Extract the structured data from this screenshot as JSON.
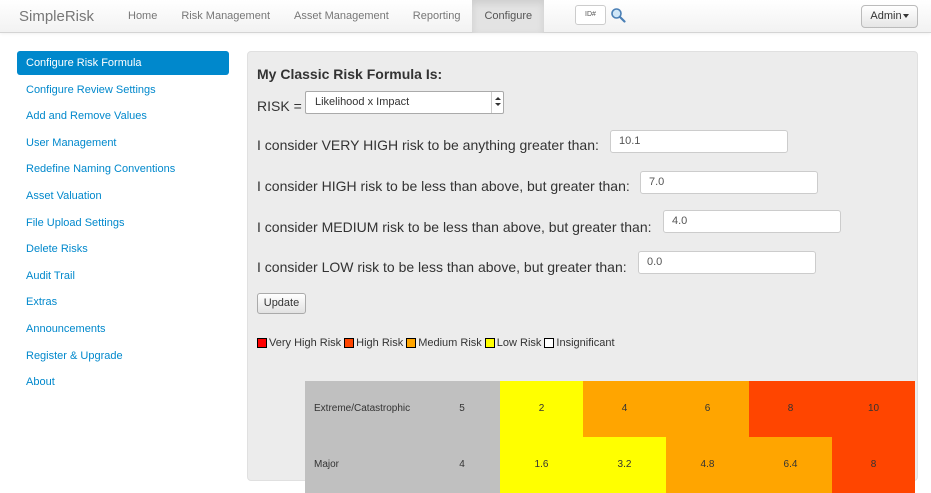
{
  "app": {
    "brand": "SimpleRisk"
  },
  "nav": {
    "items": [
      {
        "label": "Home",
        "active": false
      },
      {
        "label": "Risk Management",
        "active": false
      },
      {
        "label": "Asset Management",
        "active": false
      },
      {
        "label": "Reporting",
        "active": false
      },
      {
        "label": "Configure",
        "active": true
      }
    ],
    "search_placeholder": "ID#",
    "search_icon": "magnifier-icon",
    "user_menu": "Admin"
  },
  "sidebar": {
    "items": [
      {
        "label": "Configure Risk Formula",
        "active": true
      },
      {
        "label": "Configure Review Settings"
      },
      {
        "label": "Add and Remove Values"
      },
      {
        "label": "User Management"
      },
      {
        "label": "Redefine Naming Conventions"
      },
      {
        "label": "Asset Valuation"
      },
      {
        "label": "File Upload Settings"
      },
      {
        "label": "Delete Risks"
      },
      {
        "label": "Audit Trail"
      },
      {
        "label": "Extras"
      },
      {
        "label": "Announcements"
      },
      {
        "label": "Register & Upgrade"
      },
      {
        "label": "About"
      }
    ]
  },
  "main": {
    "heading": "My Classic Risk Formula Is:",
    "risk_label": "RISK =",
    "formula_selected": "Likelihood x Impact",
    "thresholds": [
      {
        "label": "I consider VERY HIGH risk to be anything greater than:",
        "value": "10.1"
      },
      {
        "label": "I consider HIGH risk to be less than above, but greater than:",
        "value": "7.0"
      },
      {
        "label": "I consider MEDIUM risk to be less than above, but greater than:",
        "value": "4.0"
      },
      {
        "label": "I consider LOW risk to be less than above, but greater than:",
        "value": "0.0"
      }
    ],
    "update_label": "Update",
    "legend": [
      {
        "label": "Very High Risk",
        "color": "#ff0000"
      },
      {
        "label": "High Risk",
        "color": "#ff4500"
      },
      {
        "label": "Medium Risk",
        "color": "#ffa500"
      },
      {
        "label": "Low Risk",
        "color": "#ffff00"
      },
      {
        "label": "Insignificant",
        "color": "#ffffff"
      }
    ],
    "matrix": {
      "rows": [
        {
          "label": "Extreme/Catastrophic",
          "impact": "5",
          "cells": [
            {
              "value": "2",
              "color": "#ffff00"
            },
            {
              "value": "4",
              "color": "#ffa500"
            },
            {
              "value": "6",
              "color": "#ffa500"
            },
            {
              "value": "8",
              "color": "#ff4500"
            },
            {
              "value": "10",
              "color": "#ff4500"
            }
          ]
        },
        {
          "label": "Major",
          "impact": "4",
          "cells": [
            {
              "value": "1.6",
              "color": "#ffff00"
            },
            {
              "value": "3.2",
              "color": "#ffff00"
            },
            {
              "value": "4.8",
              "color": "#ffa500"
            },
            {
              "value": "6.4",
              "color": "#ffa500"
            },
            {
              "value": "8",
              "color": "#ff4500"
            }
          ]
        }
      ]
    }
  }
}
